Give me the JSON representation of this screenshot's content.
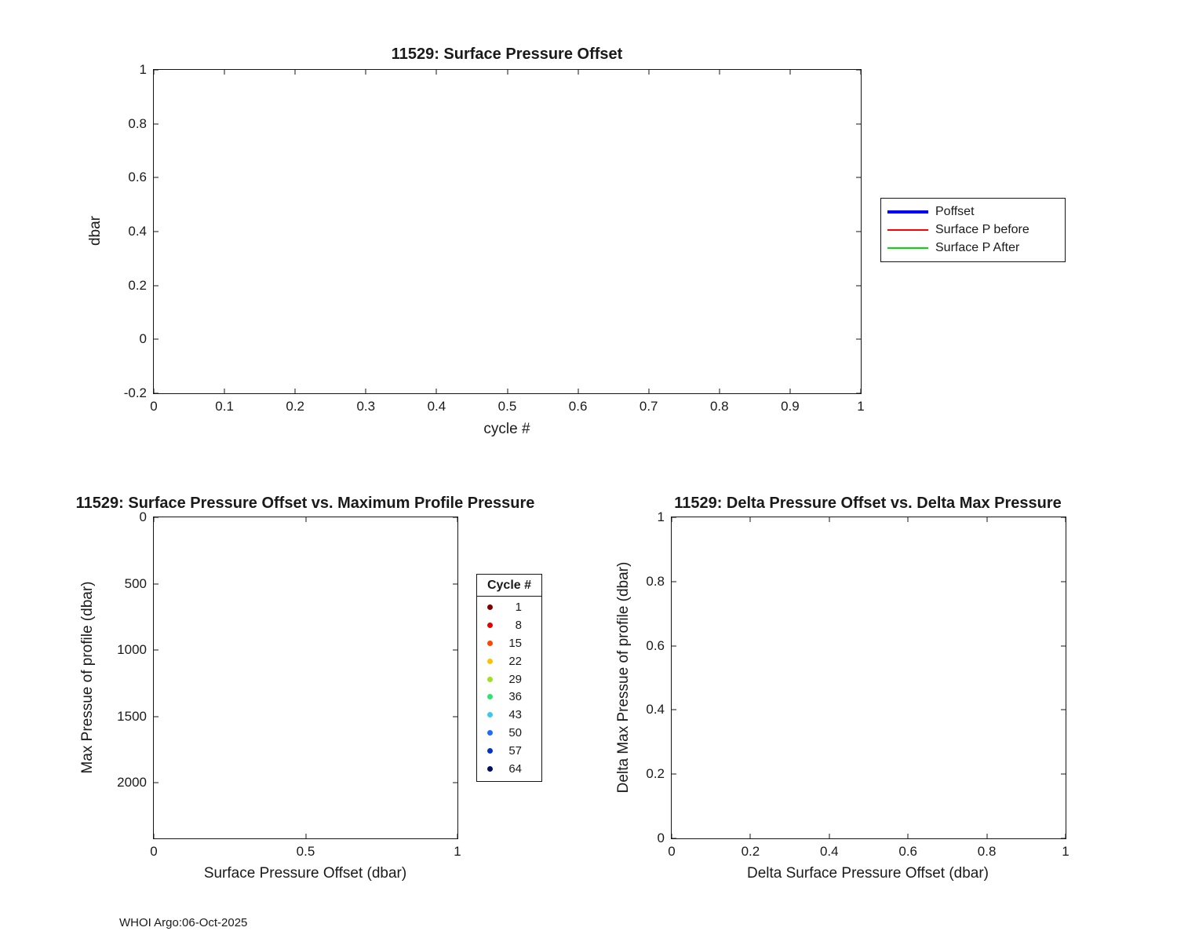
{
  "footer": {
    "credit": "WHOI Argo:06-Oct-2025"
  },
  "chart_data": [
    {
      "type": "line",
      "title": "11529: Surface Pressure Offset",
      "xlabel": "cycle #",
      "ylabel": "dbar",
      "xlim": [
        0,
        1
      ],
      "ylim": [
        -0.2,
        1
      ],
      "ydir": "normal",
      "x_ticks": [
        0,
        0.1,
        0.2,
        0.3,
        0.4,
        0.5,
        0.6,
        0.7,
        0.8,
        0.9,
        1
      ],
      "y_ticks": [
        -0.2,
        0,
        0.2,
        0.4,
        0.6,
        0.8,
        1
      ],
      "grid": false,
      "legend_position": "outside-right",
      "series": [
        {
          "name": "Poffset",
          "color": "#0000ff",
          "line_width": 4,
          "x": [],
          "y": []
        },
        {
          "name": "Surface P before",
          "color": "#ff0000",
          "line_width": 1.5,
          "x": [],
          "y": []
        },
        {
          "name": "Surface P After",
          "color": "#00dd00",
          "line_width": 1.5,
          "x": [],
          "y": []
        }
      ]
    },
    {
      "type": "scatter",
      "title": "11529: Surface Pressure Offset vs. Maximum Profile Pressure",
      "xlabel": "Surface Pressure Offset (dbar)",
      "ylabel": "Max Pressue of profile (dbar)",
      "xlim": [
        0,
        1
      ],
      "ylim": [
        0,
        2417
      ],
      "ydir": "reverse",
      "x_ticks": [
        0,
        0.5,
        1
      ],
      "y_ticks": [
        0,
        500,
        1000,
        1500,
        2000
      ],
      "grid": false,
      "legend_title": "Cycle #",
      "legend": [
        {
          "label": "1",
          "color": "#800000"
        },
        {
          "label": "8",
          "color": "#e60000"
        },
        {
          "label": "15",
          "color": "#ff4500"
        },
        {
          "label": "22",
          "color": "#ffc100"
        },
        {
          "label": "29",
          "color": "#a0e020"
        },
        {
          "label": "36",
          "color": "#2fe372"
        },
        {
          "label": "43",
          "color": "#38c9f2"
        },
        {
          "label": "50",
          "color": "#1f6bff"
        },
        {
          "label": "57",
          "color": "#0033cc"
        },
        {
          "label": "64",
          "color": "#000f66"
        }
      ],
      "points": []
    },
    {
      "type": "scatter",
      "title": "11529: Delta Pressure Offset vs. Delta Max Pressure",
      "xlabel": "Delta Surface Pressure Offset (dbar)",
      "ylabel": "Delta Max Pressue of profile (dbar)",
      "xlim": [
        0,
        1
      ],
      "ylim": [
        0,
        1
      ],
      "ydir": "normal",
      "x_ticks": [
        0,
        0.2,
        0.4,
        0.6,
        0.8,
        1
      ],
      "y_ticks": [
        0,
        0.2,
        0.4,
        0.6,
        0.8,
        1
      ],
      "grid": false,
      "points": []
    }
  ]
}
